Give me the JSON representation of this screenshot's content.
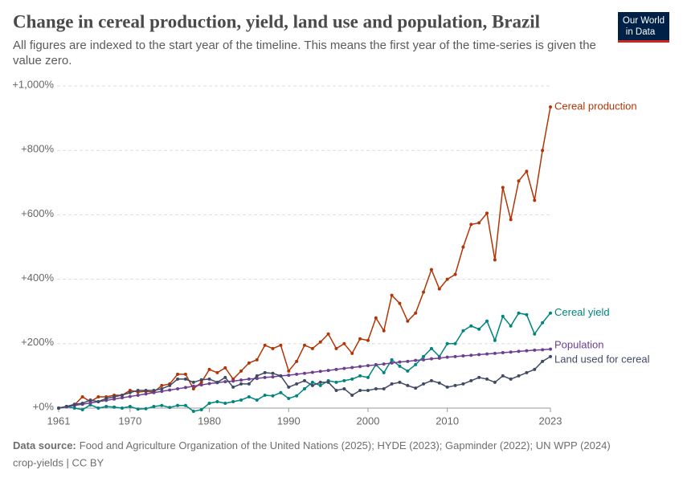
{
  "chart_data": {
    "type": "line",
    "title": "Change in cereal production, yield, land use and population, Brazil",
    "subtitle": "All figures are indexed to the start year of the timeline. This means the first year of the time-series is given the value zero.",
    "source_label": "Data source:",
    "source": "Food and Agriculture Organization of the United Nations (2025); HYDE (2023); Gapminder (2022); UN WPP (2024)",
    "footer": "crop-yields | CC BY",
    "logo": [
      "Our World",
      "in Data"
    ],
    "x": [
      1961,
      1962,
      1963,
      1964,
      1965,
      1966,
      1967,
      1968,
      1969,
      1970,
      1971,
      1972,
      1973,
      1974,
      1975,
      1976,
      1977,
      1978,
      1979,
      1980,
      1981,
      1982,
      1983,
      1984,
      1985,
      1986,
      1987,
      1988,
      1989,
      1990,
      1991,
      1992,
      1993,
      1994,
      1995,
      1996,
      1997,
      1998,
      1999,
      2000,
      2001,
      2002,
      2003,
      2004,
      2005,
      2006,
      2007,
      2008,
      2009,
      2010,
      2011,
      2012,
      2013,
      2014,
      2015,
      2016,
      2017,
      2018,
      2019,
      2020,
      2021,
      2022,
      2023
    ],
    "xlim": [
      1961,
      2023
    ],
    "xticks": [
      1961,
      1970,
      1980,
      1990,
      2000,
      2010,
      2023
    ],
    "ylim": [
      0,
      1000
    ],
    "yticks": [
      {
        "value": 0,
        "label": "+0%"
      },
      {
        "value": 200,
        "label": "+200%"
      },
      {
        "value": 400,
        "label": "+400%"
      },
      {
        "value": 600,
        "label": "+600%"
      },
      {
        "value": 800,
        "label": "+800%"
      },
      {
        "value": 1000,
        "label": "+1,000%"
      }
    ],
    "grid": true,
    "series": [
      {
        "name": "Cereal production",
        "color": "#b13507",
        "values": [
          0,
          5,
          10,
          35,
          20,
          35,
          35,
          40,
          40,
          55,
          50,
          52,
          50,
          70,
          75,
          105,
          105,
          60,
          80,
          120,
          110,
          125,
          90,
          115,
          140,
          150,
          195,
          185,
          195,
          115,
          145,
          195,
          185,
          205,
          230,
          185,
          200,
          170,
          215,
          210,
          280,
          240,
          350,
          325,
          270,
          295,
          360,
          430,
          370,
          400,
          415,
          500,
          570,
          575,
          605,
          460,
          685,
          585,
          705,
          735,
          645,
          800,
          935
        ]
      },
      {
        "name": "Cereal yield",
        "color": "#00847e",
        "values": [
          0,
          5,
          0,
          -5,
          10,
          0,
          5,
          3,
          0,
          5,
          -3,
          -2,
          5,
          8,
          2,
          8,
          8,
          -10,
          -5,
          15,
          20,
          15,
          20,
          25,
          35,
          25,
          40,
          38,
          48,
          30,
          38,
          60,
          80,
          70,
          85,
          80,
          85,
          90,
          100,
          95,
          135,
          110,
          150,
          130,
          115,
          135,
          160,
          185,
          160,
          200,
          200,
          240,
          255,
          245,
          270,
          210,
          285,
          255,
          295,
          290,
          230,
          265,
          295
        ]
      },
      {
        "name": "Population",
        "color": "#6d3e91",
        "values": [
          0,
          4,
          8,
          12,
          16,
          20,
          24,
          28,
          32,
          36,
          40,
          44,
          48,
          52,
          56,
          60,
          64,
          68,
          72,
          76,
          79,
          82,
          84,
          87,
          90,
          92,
          95,
          97,
          100,
          102,
          105,
          108,
          111,
          114,
          117,
          120,
          123,
          126,
          129,
          132,
          134,
          137,
          140,
          143,
          145,
          148,
          150,
          153,
          155,
          158,
          160,
          162,
          164,
          166,
          168,
          170,
          172,
          174,
          176,
          178,
          180,
          181,
          183
        ]
      },
      {
        "name": "Land used for cereal",
        "color": "#3f4a64",
        "values": [
          0,
          5,
          12,
          15,
          25,
          20,
          30,
          35,
          40,
          48,
          55,
          55,
          55,
          60,
          70,
          90,
          90,
          80,
          88,
          90,
          80,
          95,
          65,
          75,
          75,
          100,
          110,
          108,
          100,
          65,
          75,
          85,
          70,
          80,
          80,
          55,
          60,
          40,
          55,
          55,
          60,
          60,
          75,
          80,
          70,
          62,
          75,
          85,
          78,
          65,
          70,
          75,
          85,
          95,
          90,
          80,
          100,
          90,
          100,
          110,
          120,
          145,
          160
        ]
      }
    ]
  }
}
